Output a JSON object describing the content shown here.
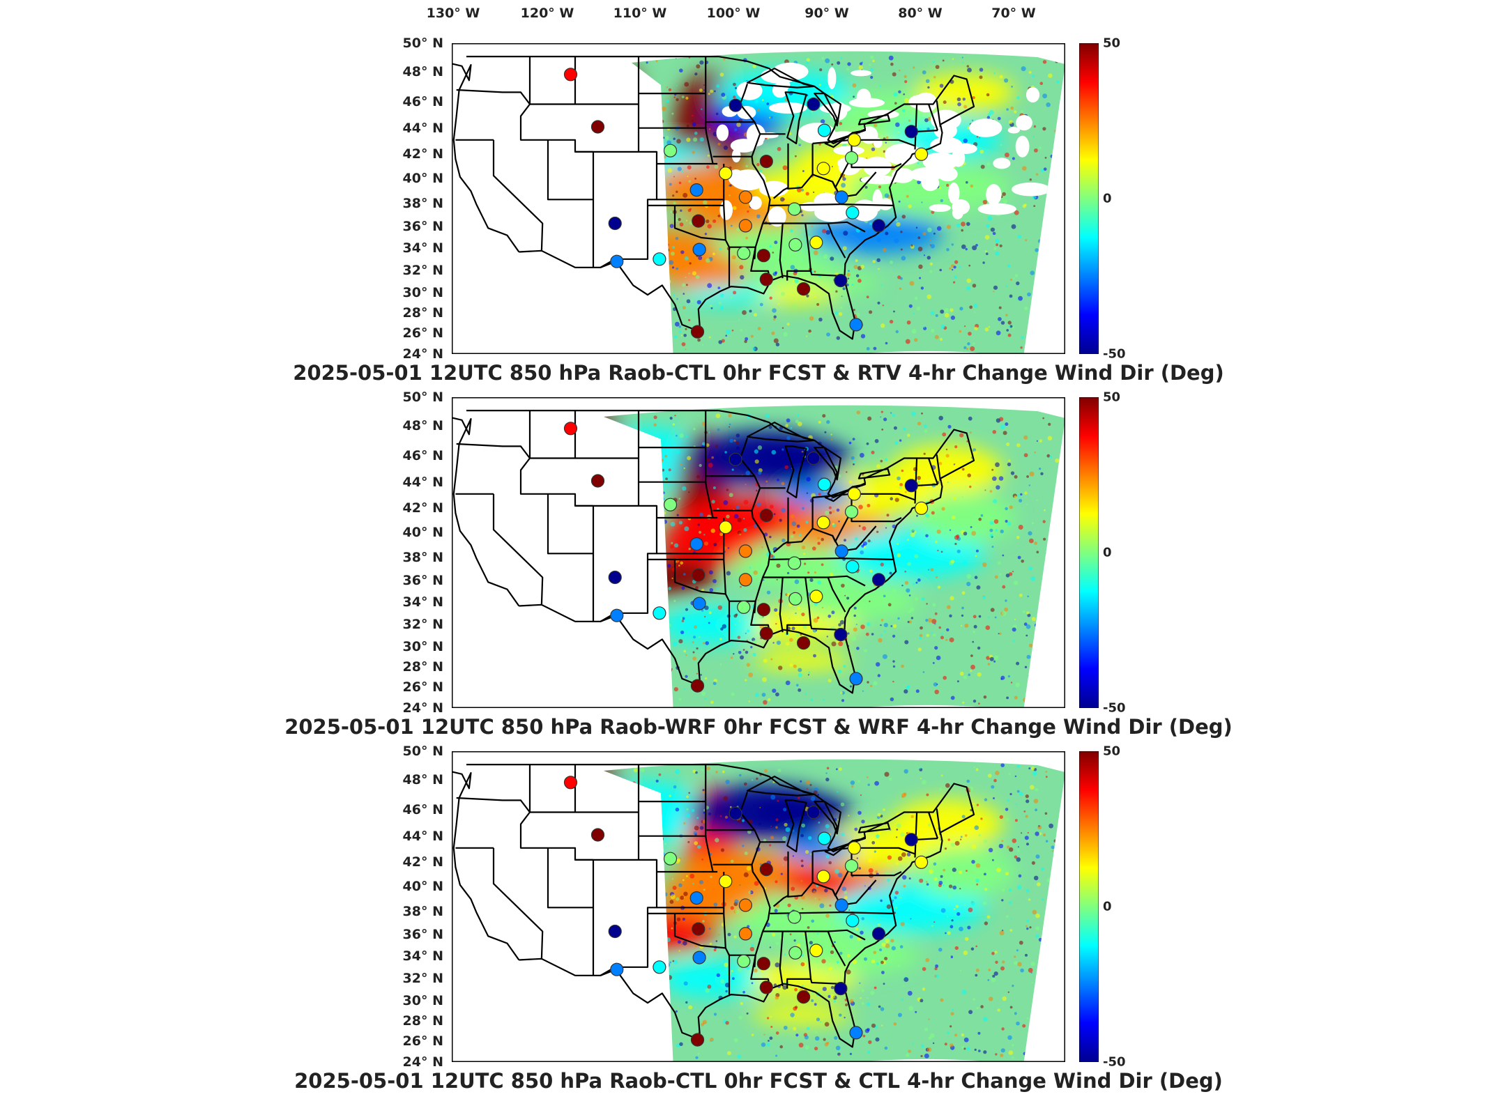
{
  "lon_labels": [
    "130° W",
    "120° W",
    "110° W",
    "100° W",
    "90° W",
    "80° W",
    "70° W"
  ],
  "lat_labels": [
    "50° N",
    "48° N",
    "46° N",
    "44° N",
    "42° N",
    "40° N",
    "38° N",
    "36° N",
    "34° N",
    "32° N",
    "30° N",
    "28° N",
    "26° N",
    "24° N"
  ],
  "colorbar": {
    "max": "50",
    "mid": "0",
    "min": "-50",
    "colors": [
      "#00008f",
      "#0000ff",
      "#0080ff",
      "#00ffff",
      "#80ff80",
      "#ffff00",
      "#ff8000",
      "#ff0000",
      "#800000"
    ]
  },
  "panels": [
    {
      "title": "2025-05-01 12UTC 850 hPa Raob-CTL 0hr FCST & RTV 4-hr Change Wind Dir (Deg)",
      "variant": "rtv"
    },
    {
      "title": "2025-05-01 12UTC 850 hPa Raob-WRF 0hr FCST & WRF 4-hr Change Wind Dir (Deg)",
      "variant": "wrf"
    },
    {
      "title": "2025-05-01 12UTC 850 hPa Raob-CTL 0hr FCST & CTL 4-hr Change Wind Dir (Deg)",
      "variant": "ctl"
    }
  ],
  "stations": [
    {
      "lon": -111.5,
      "lat": 47.5,
      "value": 35
    },
    {
      "lon": -108.5,
      "lat": 43.1,
      "value": 45
    },
    {
      "lon": -106.6,
      "lat": 35.0,
      "value": -45
    },
    {
      "lon": -106.4,
      "lat": 31.8,
      "value": -20
    },
    {
      "lon": -101.7,
      "lat": 32.0,
      "value": -15
    },
    {
      "lon": -100.5,
      "lat": 41.1,
      "value": -5
    },
    {
      "lon": -97.6,
      "lat": 37.8,
      "value": -30
    },
    {
      "lon": -97.4,
      "lat": 35.2,
      "value": 45
    },
    {
      "lon": -97.3,
      "lat": 32.8,
      "value": -30
    },
    {
      "lon": -97.5,
      "lat": 25.9,
      "value": 50
    },
    {
      "lon": -94.4,
      "lat": 39.2,
      "value": 15
    },
    {
      "lon": -93.3,
      "lat": 44.9,
      "value": -50
    },
    {
      "lon": -92.2,
      "lat": 37.2,
      "value": 30
    },
    {
      "lon": -92.2,
      "lat": 34.8,
      "value": 20
    },
    {
      "lon": -92.4,
      "lat": 32.5,
      "value": 5
    },
    {
      "lon": -90.2,
      "lat": 32.3,
      "value": 50
    },
    {
      "lon": -89.9,
      "lat": 40.2,
      "value": 50
    },
    {
      "lon": -89.9,
      "lat": 30.3,
      "value": 55
    },
    {
      "lon": -86.8,
      "lat": 36.2,
      "value": 0
    },
    {
      "lon": -86.7,
      "lat": 33.2,
      "value": -5
    },
    {
      "lon": -85.8,
      "lat": 29.5,
      "value": 50
    },
    {
      "lon": -84.4,
      "lat": 33.4,
      "value": 10
    },
    {
      "lon": -84.7,
      "lat": 45.0,
      "value": -50
    },
    {
      "lon": -83.5,
      "lat": 42.8,
      "value": -15
    },
    {
      "lon": -83.6,
      "lat": 39.6,
      "value": 15
    },
    {
      "lon": -81.6,
      "lat": 37.2,
      "value": -25
    },
    {
      "lon": -81.7,
      "lat": 30.2,
      "value": -45
    },
    {
      "lon": -80.2,
      "lat": 42.0,
      "value": 15
    },
    {
      "lon": -80.5,
      "lat": 40.5,
      "value": 5
    },
    {
      "lon": -80.4,
      "lat": 35.9,
      "value": -10
    },
    {
      "lon": -80.0,
      "lat": 26.5,
      "value": -20
    },
    {
      "lon": -77.5,
      "lat": 34.8,
      "value": -45
    },
    {
      "lon": -73.9,
      "lat": 42.7,
      "value": -50
    },
    {
      "lon": -72.8,
      "lat": 40.8,
      "value": 10
    }
  ]
}
